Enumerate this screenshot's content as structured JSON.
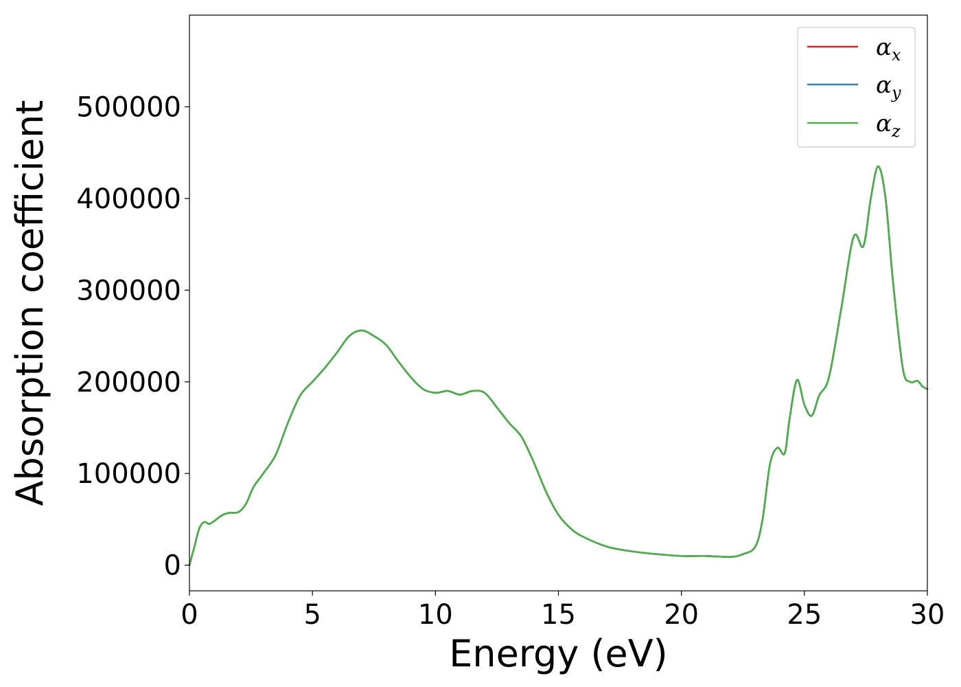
{
  "chart_data": {
    "type": "line",
    "title": "",
    "xlabel": "Energy (eV)",
    "ylabel": "Absorption coefficient",
    "xlim": [
      0,
      30
    ],
    "ylim": [
      -28000,
      600000
    ],
    "xticks": [
      0,
      5,
      10,
      15,
      20,
      25,
      30
    ],
    "yticks": [
      0,
      100000,
      200000,
      300000,
      400000,
      500000
    ],
    "x_tick_labels": [
      "0",
      "5",
      "10",
      "15",
      "20",
      "25",
      "30"
    ],
    "y_tick_labels": [
      "0",
      "100000",
      "200000",
      "300000",
      "400000",
      "500000"
    ],
    "grid": false,
    "legend_position": "top-right",
    "x": [
      0,
      0.2,
      0.4,
      0.6,
      0.8,
      1.0,
      1.3,
      1.6,
      2.0,
      2.3,
      2.6,
      3.0,
      3.5,
      4.0,
      4.5,
      5.0,
      5.5,
      6.0,
      6.5,
      7.0,
      7.5,
      8.0,
      8.5,
      9.0,
      9.5,
      10.0,
      10.5,
      11.0,
      11.5,
      12.0,
      12.5,
      13.0,
      13.5,
      14.0,
      14.5,
      15.0,
      15.5,
      16.0,
      17.0,
      18.0,
      19.0,
      20.0,
      21.0,
      22.0,
      22.5,
      23.0,
      23.3,
      23.6,
      23.9,
      24.2,
      24.4,
      24.7,
      25.0,
      25.3,
      25.6,
      26.0,
      26.5,
      27.0,
      27.4,
      27.7,
      28.0,
      28.3,
      28.6,
      29.0,
      29.3,
      29.6,
      29.8,
      30.0
    ],
    "series": [
      {
        "name": "α_x",
        "name_main": "α",
        "name_sub": "x",
        "color": "#e41a1c",
        "values": [
          0,
          20000,
          40000,
          47000,
          45000,
          48000,
          54000,
          57000,
          58000,
          67000,
          85000,
          100000,
          120000,
          155000,
          185000,
          200000,
          215000,
          232000,
          250000,
          256000,
          250000,
          240000,
          222000,
          205000,
          192000,
          188000,
          190000,
          186000,
          190000,
          188000,
          172000,
          155000,
          140000,
          112000,
          80000,
          55000,
          40000,
          31000,
          20000,
          15000,
          12000,
          10000,
          10000,
          9000,
          12000,
          20000,
          50000,
          110000,
          128000,
          122000,
          160000,
          202000,
          175000,
          163000,
          185000,
          205000,
          280000,
          358000,
          348000,
          400000,
          435000,
          400000,
          310000,
          215000,
          200000,
          201000,
          195000,
          192000
        ]
      },
      {
        "name": "α_y",
        "name_main": "α",
        "name_sub": "y",
        "color": "#377eb8",
        "values": [
          0,
          20000,
          40000,
          47000,
          45000,
          48000,
          54000,
          57000,
          58000,
          67000,
          85000,
          100000,
          120000,
          155000,
          185000,
          200000,
          215000,
          232000,
          250000,
          256000,
          250000,
          240000,
          222000,
          205000,
          192000,
          188000,
          190000,
          186000,
          190000,
          188000,
          172000,
          155000,
          140000,
          112000,
          80000,
          55000,
          40000,
          31000,
          20000,
          15000,
          12000,
          10000,
          10000,
          9000,
          12000,
          20000,
          50000,
          110000,
          128000,
          122000,
          160000,
          202000,
          175000,
          163000,
          185000,
          205000,
          280000,
          358000,
          348000,
          400000,
          435000,
          400000,
          310000,
          215000,
          200000,
          201000,
          195000,
          192000
        ]
      },
      {
        "name": "α_z",
        "name_main": "α",
        "name_sub": "z",
        "color": "#4daf4a",
        "values": [
          0,
          20000,
          40000,
          47000,
          45000,
          48000,
          54000,
          57000,
          58000,
          67000,
          85000,
          100000,
          120000,
          155000,
          185000,
          200000,
          215000,
          232000,
          250000,
          256000,
          250000,
          240000,
          222000,
          205000,
          192000,
          188000,
          190000,
          186000,
          190000,
          188000,
          172000,
          155000,
          140000,
          112000,
          80000,
          55000,
          40000,
          31000,
          20000,
          15000,
          12000,
          10000,
          10000,
          9000,
          12000,
          20000,
          50000,
          110000,
          128000,
          122000,
          160000,
          202000,
          175000,
          163000,
          185000,
          205000,
          280000,
          358000,
          348000,
          400000,
          435000,
          400000,
          310000,
          215000,
          200000,
          201000,
          195000,
          192000
        ]
      }
    ]
  }
}
